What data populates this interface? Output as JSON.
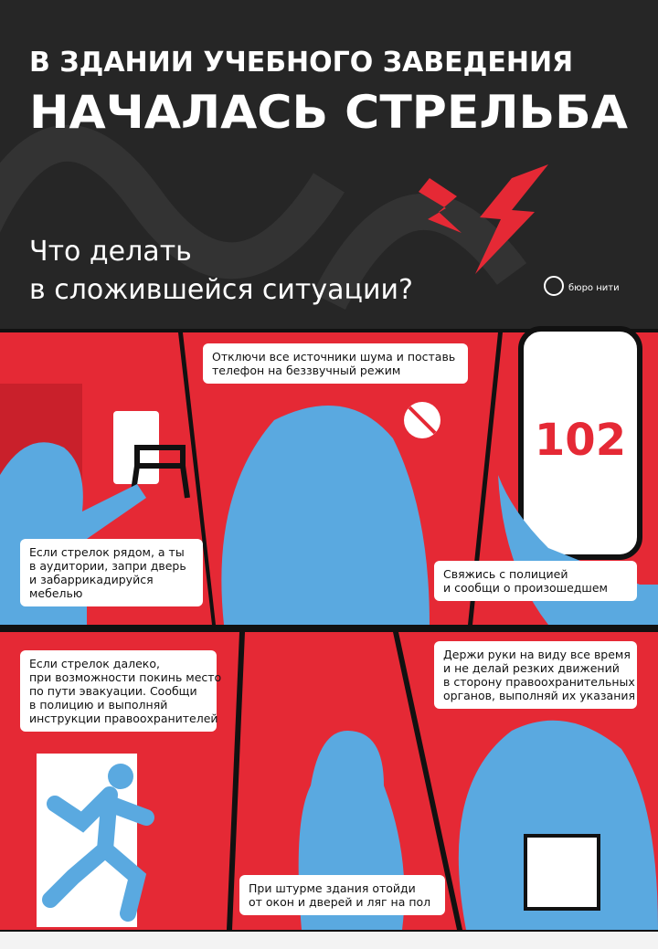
{
  "header": {
    "title_lines": [
      "В ЗДАНИИ УЧЕБНОГО ЗАВЕДЕНИЯ",
      "НАЧАЛАСЬ СТРЕЛЬБА"
    ],
    "subtitle_lines": [
      "Что делать",
      "в сложившейся ситуации?"
    ],
    "logo": "бюро нити"
  },
  "panels": [
    {
      "caption": [
        "Если стрелок рядом, а ты",
        "в аудитории, запри дверь",
        "и забаррикадируйся",
        "мебелью"
      ]
    },
    {
      "caption": [
        "Отключи все источники шума и поставь",
        "телефон на беззвучный режим"
      ]
    },
    {
      "phone": "102",
      "caption": [
        "Свяжись с полицией",
        "и сообщи о произошедшем"
      ]
    },
    {
      "caption": [
        "Если стрелок далеко,",
        "при возможности покинь место",
        "по пути эвакуации. Сообщи",
        "в полицию и выполняй",
        "инструкции правоохранителей"
      ]
    },
    {
      "caption": [
        "При штурме здания отойди",
        "от окон и дверей и ляг на пол"
      ]
    },
    {
      "caption": [
        "Держи руки на виду все время",
        "и не делай резких движений",
        "в сторону правоохранительных",
        "органов, выполняй их указания"
      ]
    }
  ]
}
